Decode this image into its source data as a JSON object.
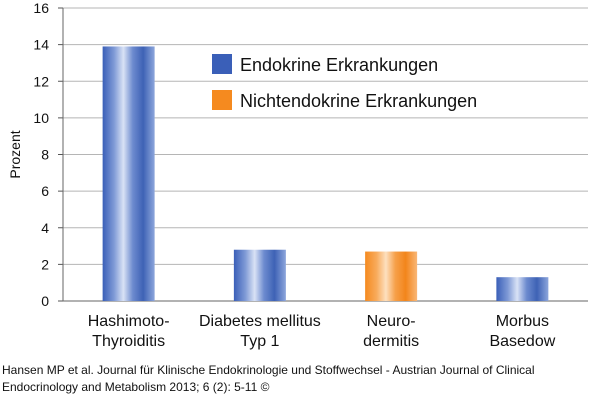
{
  "chart_data": {
    "type": "bar",
    "ylabel": "Prozent",
    "xlabel": "",
    "ylim": [
      0,
      16
    ],
    "yticks": [
      0,
      2,
      4,
      6,
      8,
      10,
      12,
      14,
      16
    ],
    "grid": true,
    "legend_position": "top-right",
    "categories": [
      [
        "Hashimoto-",
        "Thyroiditis"
      ],
      [
        "Diabetes mellitus",
        "Typ 1"
      ],
      [
        "Neuro-",
        "dermitis"
      ],
      [
        "Morbus",
        "Basedow"
      ]
    ],
    "values": [
      13.9,
      2.8,
      2.7,
      1.3
    ],
    "bar_series": [
      "Endokrine Erkrankungen",
      "Endokrine Erkrankungen",
      "Nichtendokrine Erkrankungen",
      "Endokrine Erkrankungen"
    ],
    "series": [
      {
        "name": "Endokrine Erkrankungen",
        "color": "#3a5fb8"
      },
      {
        "name": "Nichtendokrine Erkrankungen",
        "color": "#f58a1f"
      }
    ]
  },
  "caption": {
    "line1": "Hansen MP et al. Journal für Klinische Endokrinologie und Stoffwechsel - Austrian Journal of Clinical",
    "line2": "Endocrinology and Metabolism 2013; 6 (2): 5-11 ©"
  }
}
